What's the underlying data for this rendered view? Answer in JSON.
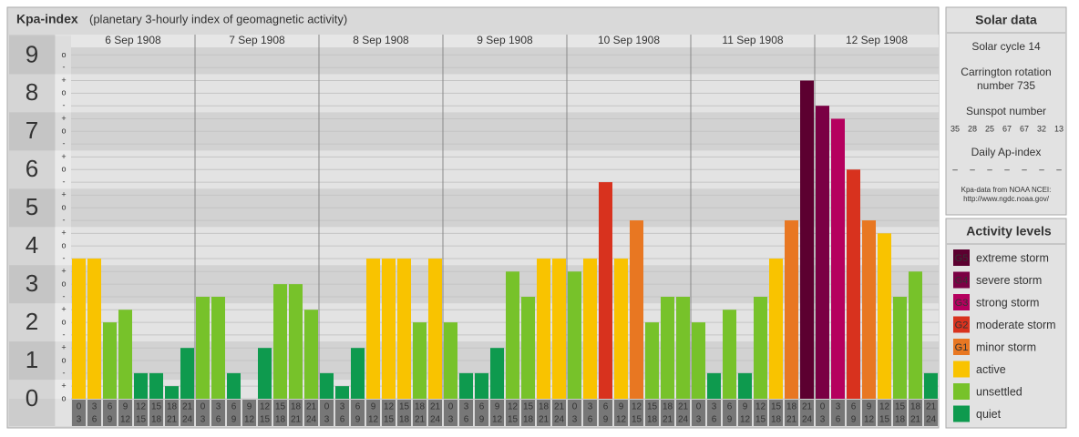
{
  "chart_data": {
    "type": "bar",
    "title": "Kpa-index",
    "subtitle": "(planetary 3-hourly index of geomagnetic activity)",
    "intervals": [
      [
        "0",
        "3"
      ],
      [
        "3",
        "6"
      ],
      [
        "6",
        "9"
      ],
      [
        "9",
        "12"
      ],
      [
        "12",
        "15"
      ],
      [
        "15",
        "18"
      ],
      [
        "18",
        "21"
      ],
      [
        "21",
        "24"
      ]
    ],
    "days": [
      {
        "name": "6 Sep 1908",
        "values": [
          3.67,
          3.67,
          2,
          2.33,
          0.67,
          0.67,
          0.33,
          1.33
        ],
        "colors": [
          "#f9c300",
          "#f9c300",
          "#77c22a",
          "#77c22a",
          "#0e9a4e",
          "#0e9a4e",
          "#0e9a4e",
          "#0e9a4e"
        ]
      },
      {
        "name": "7 Sep 1908",
        "values": [
          2.67,
          2.67,
          0.67,
          0,
          1.33,
          3,
          3,
          2.33
        ],
        "colors": [
          "#77c22a",
          "#77c22a",
          "#0e9a4e",
          "#0e9a4e",
          "#0e9a4e",
          "#77c22a",
          "#77c22a",
          "#77c22a"
        ]
      },
      {
        "name": "8 Sep 1908",
        "values": [
          0.67,
          0.33,
          1.33,
          3.67,
          3.67,
          3.67,
          2,
          3.67
        ],
        "colors": [
          "#0e9a4e",
          "#0e9a4e",
          "#0e9a4e",
          "#f9c300",
          "#f9c300",
          "#f9c300",
          "#77c22a",
          "#f9c300"
        ]
      },
      {
        "name": "9 Sep 1908",
        "values": [
          2,
          0.67,
          0.67,
          1.33,
          3.33,
          2.67,
          3.67,
          3.67
        ],
        "colors": [
          "#77c22a",
          "#0e9a4e",
          "#0e9a4e",
          "#0e9a4e",
          "#77c22a",
          "#77c22a",
          "#f9c300",
          "#f9c300"
        ]
      },
      {
        "name": "10 Sep 1908",
        "values": [
          3.33,
          3.67,
          5.67,
          3.67,
          4.67,
          2,
          2.67,
          2.67
        ],
        "colors": [
          "#77c22a",
          "#f9c300",
          "#d8321e",
          "#f9c300",
          "#e87722",
          "#77c22a",
          "#77c22a",
          "#77c22a"
        ]
      },
      {
        "name": "11 Sep 1908",
        "values": [
          2,
          0.67,
          2.33,
          0.67,
          2.67,
          3.67,
          4.67,
          8.33
        ],
        "colors": [
          "#77c22a",
          "#0e9a4e",
          "#77c22a",
          "#0e9a4e",
          "#77c22a",
          "#f9c300",
          "#e87722",
          "#5c0030"
        ]
      },
      {
        "name": "12 Sep 1908",
        "values": [
          7.67,
          7.33,
          6,
          4.67,
          4.33,
          2.67,
          3.33,
          0.67
        ],
        "colors": [
          "#7a0044",
          "#b5005e",
          "#d8321e",
          "#e87722",
          "#f9c300",
          "#77c22a",
          "#77c22a",
          "#0e9a4e"
        ]
      }
    ],
    "ylim": [
      0,
      9.2
    ],
    "yticks": [
      0,
      1,
      2,
      3,
      4,
      5,
      6,
      7,
      8,
      9
    ],
    "minor_ticks": [
      {
        "value": 0,
        "label": "o"
      },
      {
        "value": 0.33,
        "label": "+"
      },
      {
        "value": 0.67,
        "label": "-"
      },
      {
        "value": 1,
        "label": "o"
      },
      {
        "value": 1.33,
        "label": "+"
      },
      {
        "value": 1.67,
        "label": "-"
      },
      {
        "value": 2,
        "label": "o"
      },
      {
        "value": 2.33,
        "label": "+"
      },
      {
        "value": 2.67,
        "label": "-"
      },
      {
        "value": 3,
        "label": "o"
      },
      {
        "value": 3.33,
        "label": "+"
      },
      {
        "value": 3.67,
        "label": "-"
      },
      {
        "value": 4,
        "label": "o"
      },
      {
        "value": 4.33,
        "label": "+"
      },
      {
        "value": 4.67,
        "label": "-"
      },
      {
        "value": 5,
        "label": "o"
      },
      {
        "value": 5.33,
        "label": "+"
      },
      {
        "value": 5.67,
        "label": "-"
      },
      {
        "value": 6,
        "label": "o"
      },
      {
        "value": 6.33,
        "label": "+"
      },
      {
        "value": 6.67,
        "label": "-"
      },
      {
        "value": 7,
        "label": "o"
      },
      {
        "value": 7.33,
        "label": "+"
      },
      {
        "value": 7.67,
        "label": "-"
      },
      {
        "value": 8,
        "label": "o"
      },
      {
        "value": 8.33,
        "label": "+"
      },
      {
        "value": 8.67,
        "label": "-"
      },
      {
        "value": 9,
        "label": "o"
      }
    ]
  },
  "solar_panel": {
    "title": "Solar data",
    "cycle": "Solar cycle 14",
    "carrington": [
      "Carrington rotation",
      "number 735"
    ],
    "sunspot_label": "Sunspot number",
    "sunspot": [
      35,
      28,
      25,
      67,
      67,
      32,
      13
    ],
    "ap_label": "Daily Ap-index",
    "ap": [
      "–",
      "–",
      "–",
      "–",
      "–",
      "–",
      "–"
    ],
    "source": [
      "Kpa-data from NOAA NCEI:",
      "http://www.ngdc.noaa.gov/"
    ]
  },
  "activity_legend": {
    "title": "Activity levels",
    "levels": [
      {
        "code": "G5",
        "label": "extreme storm",
        "color": "#5c0030"
      },
      {
        "code": "G4",
        "label": "severe storm",
        "color": "#7a0044"
      },
      {
        "code": "G3",
        "label": "strong storm",
        "color": "#b5005e"
      },
      {
        "code": "G2",
        "label": "moderate storm",
        "color": "#d8321e"
      },
      {
        "code": "G1",
        "label": "minor storm",
        "color": "#e87722"
      },
      {
        "label": "active",
        "color": "#f9c300"
      },
      {
        "label": "unsettled",
        "color": "#77c22a"
      },
      {
        "label": "quiet",
        "color": "#0e9a4e"
      }
    ]
  }
}
